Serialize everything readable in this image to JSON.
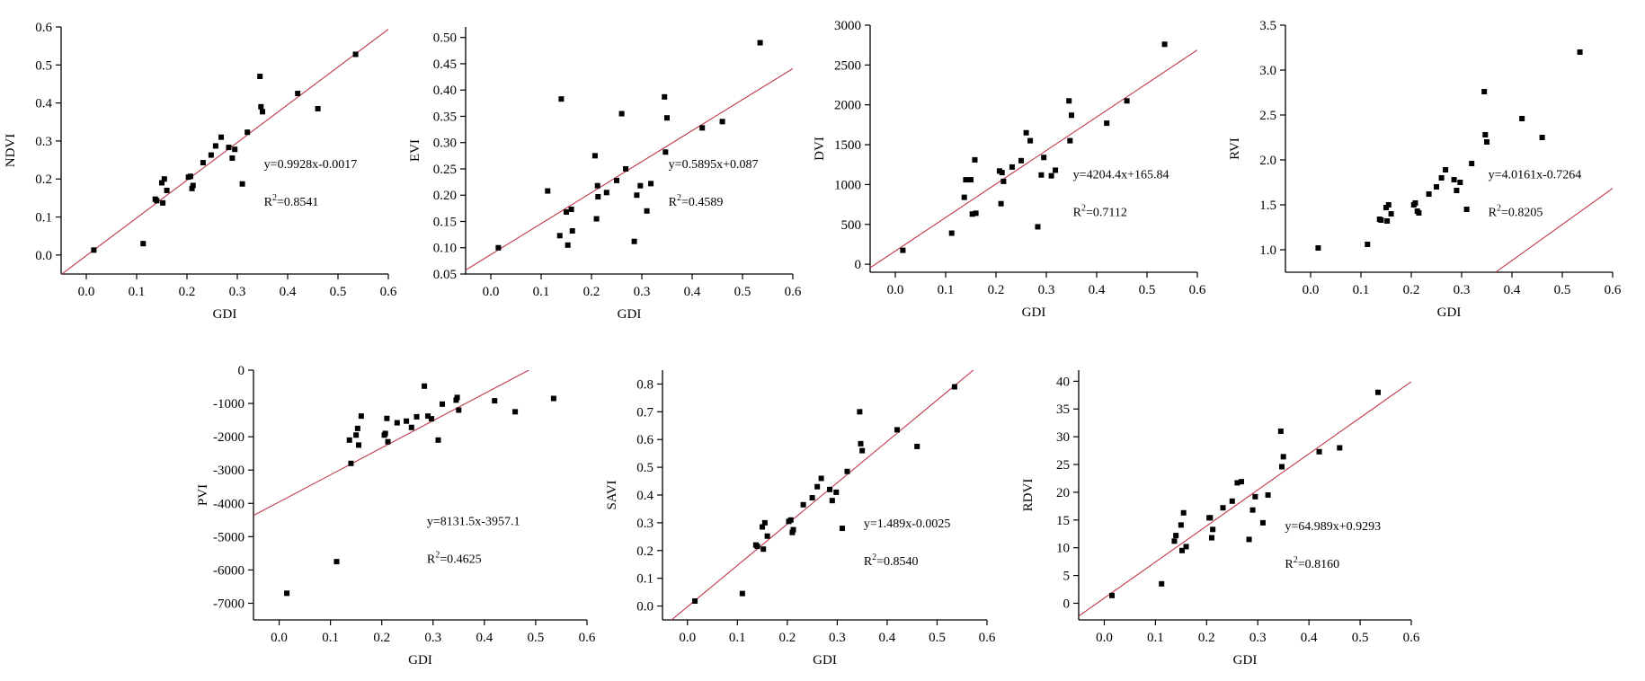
{
  "figure": {
    "background": "#ffffff",
    "fit_line_color": "#c0394a",
    "point_color": "#000000"
  },
  "chart_data": [
    {
      "type": "scatter",
      "title": "",
      "xlabel": "GDI",
      "ylabel": "NDVI",
      "xlim": [
        -0.05,
        0.6
      ],
      "ylim": [
        -0.05,
        0.6
      ],
      "xticks": [
        "0.0",
        "0.1",
        "0.2",
        "0.3",
        "0.4",
        "0.5",
        "0.6"
      ],
      "yticks": [
        "0.0",
        "0.1",
        "0.2",
        "0.3",
        "0.4",
        "0.5",
        "0.6"
      ],
      "equation": "y=0.9928x-0.0017",
      "r2_prefix": "R",
      "r2_sup": "2",
      "r2_value": "=0.8541",
      "fit": {
        "slope": 0.9928,
        "intercept": -0.0017
      },
      "points": [
        [
          0.015,
          0.013
        ],
        [
          0.113,
          0.03
        ],
        [
          0.137,
          0.147
        ],
        [
          0.14,
          0.143
        ],
        [
          0.15,
          0.19
        ],
        [
          0.152,
          0.137
        ],
        [
          0.155,
          0.2
        ],
        [
          0.16,
          0.17
        ],
        [
          0.203,
          0.205
        ],
        [
          0.207,
          0.207
        ],
        [
          0.21,
          0.175
        ],
        [
          0.212,
          0.183
        ],
        [
          0.232,
          0.243
        ],
        [
          0.248,
          0.263
        ],
        [
          0.257,
          0.287
        ],
        [
          0.268,
          0.31
        ],
        [
          0.283,
          0.283
        ],
        [
          0.29,
          0.255
        ],
        [
          0.295,
          0.278
        ],
        [
          0.31,
          0.187
        ],
        [
          0.32,
          0.323
        ],
        [
          0.345,
          0.47
        ],
        [
          0.347,
          0.39
        ],
        [
          0.35,
          0.377
        ],
        [
          0.42,
          0.425
        ],
        [
          0.46,
          0.385
        ],
        [
          0.535,
          0.528
        ]
      ]
    },
    {
      "type": "scatter",
      "title": "",
      "xlabel": "GDI",
      "ylabel": "EVI",
      "xlim": [
        -0.05,
        0.6
      ],
      "ylim": [
        0.05,
        0.52
      ],
      "xticks": [
        "0.0",
        "0.1",
        "0.2",
        "0.3",
        "0.4",
        "0.5",
        "0.6"
      ],
      "yticks": [
        "0.05",
        "0.10",
        "0.15",
        "0.20",
        "0.25",
        "0.30",
        "0.35",
        "0.40",
        "0.45",
        "0.50"
      ],
      "equation": "y=0.5895x+0.087",
      "r2_prefix": "R",
      "r2_sup": "2",
      "r2_value": "=0.4589",
      "fit": {
        "slope": 0.5895,
        "intercept": 0.087
      },
      "points": [
        [
          0.015,
          0.1
        ],
        [
          0.113,
          0.208
        ],
        [
          0.137,
          0.123
        ],
        [
          0.14,
          0.383
        ],
        [
          0.15,
          0.168
        ],
        [
          0.153,
          0.105
        ],
        [
          0.16,
          0.173
        ],
        [
          0.162,
          0.132
        ],
        [
          0.207,
          0.275
        ],
        [
          0.21,
          0.155
        ],
        [
          0.212,
          0.218
        ],
        [
          0.213,
          0.197
        ],
        [
          0.23,
          0.205
        ],
        [
          0.25,
          0.228
        ],
        [
          0.26,
          0.355
        ],
        [
          0.268,
          0.25
        ],
        [
          0.285,
          0.112
        ],
        [
          0.29,
          0.2
        ],
        [
          0.297,
          0.218
        ],
        [
          0.31,
          0.17
        ],
        [
          0.318,
          0.222
        ],
        [
          0.345,
          0.387
        ],
        [
          0.347,
          0.282
        ],
        [
          0.35,
          0.347
        ],
        [
          0.42,
          0.328
        ],
        [
          0.46,
          0.34
        ],
        [
          0.535,
          0.49
        ]
      ]
    },
    {
      "type": "scatter",
      "title": "",
      "xlabel": "GDI",
      "ylabel": "DVI",
      "xlim": [
        -0.05,
        0.6
      ],
      "ylim": [
        -100,
        3000
      ],
      "xticks": [
        "0.0",
        "0.1",
        "0.2",
        "0.3",
        "0.4",
        "0.5",
        "0.6"
      ],
      "yticks": [
        "0",
        "500",
        "1000",
        "1500",
        "2000",
        "2500",
        "3000"
      ],
      "equation": "y=4204.4x+165.84",
      "r2_prefix": "R",
      "r2_sup": "2",
      "r2_value": "=0.7112",
      "fit": {
        "slope": 4204.4,
        "intercept": 165.84
      },
      "points": [
        [
          0.015,
          175
        ],
        [
          0.112,
          390
        ],
        [
          0.137,
          840
        ],
        [
          0.14,
          1060
        ],
        [
          0.15,
          1060
        ],
        [
          0.153,
          630
        ],
        [
          0.158,
          1310
        ],
        [
          0.16,
          640
        ],
        [
          0.207,
          1170
        ],
        [
          0.21,
          760
        ],
        [
          0.212,
          1150
        ],
        [
          0.215,
          1040
        ],
        [
          0.232,
          1220
        ],
        [
          0.25,
          1300
        ],
        [
          0.26,
          1650
        ],
        [
          0.268,
          1550
        ],
        [
          0.283,
          470
        ],
        [
          0.29,
          1120
        ],
        [
          0.295,
          1340
        ],
        [
          0.31,
          1110
        ],
        [
          0.318,
          1180
        ],
        [
          0.345,
          2050
        ],
        [
          0.347,
          1550
        ],
        [
          0.35,
          1870
        ],
        [
          0.42,
          1770
        ],
        [
          0.46,
          2050
        ],
        [
          0.535,
          2760
        ]
      ]
    },
    {
      "type": "scatter",
      "title": "",
      "xlabel": "GDI",
      "ylabel": "RVI",
      "xlim": [
        -0.05,
        0.6
      ],
      "ylim": [
        0.75,
        3.5
      ],
      "xticks": [
        "0.0",
        "0.1",
        "0.2",
        "0.3",
        "0.4",
        "0.5",
        "0.6"
      ],
      "yticks": [
        "1.0",
        "1.5",
        "2.0",
        "2.5",
        "3.0",
        "3.5"
      ],
      "equation": "y=4.0161x-0.7264",
      "r2_prefix": "R",
      "r2_sup": "2",
      "r2_value": "=0.8205",
      "fit": {
        "slope": 4.0161,
        "intercept": -0.7264
      },
      "points": [
        [
          0.015,
          1.02
        ],
        [
          0.113,
          1.06
        ],
        [
          0.137,
          1.34
        ],
        [
          0.14,
          1.33
        ],
        [
          0.15,
          1.47
        ],
        [
          0.152,
          1.32
        ],
        [
          0.155,
          1.5
        ],
        [
          0.16,
          1.4
        ],
        [
          0.205,
          1.5
        ],
        [
          0.208,
          1.52
        ],
        [
          0.212,
          1.43
        ],
        [
          0.215,
          1.41
        ],
        [
          0.235,
          1.62
        ],
        [
          0.25,
          1.7
        ],
        [
          0.26,
          1.8
        ],
        [
          0.268,
          1.89
        ],
        [
          0.285,
          1.78
        ],
        [
          0.29,
          1.66
        ],
        [
          0.297,
          1.75
        ],
        [
          0.31,
          1.45
        ],
        [
          0.32,
          1.96
        ],
        [
          0.345,
          2.76
        ],
        [
          0.347,
          2.28
        ],
        [
          0.35,
          2.2
        ],
        [
          0.42,
          2.46
        ],
        [
          0.46,
          2.25
        ],
        [
          0.535,
          3.2
        ]
      ]
    },
    {
      "type": "scatter",
      "title": "",
      "xlabel": "GDI",
      "ylabel": "PVI",
      "xlim": [
        -0.05,
        0.6
      ],
      "ylim": [
        -7500,
        0
      ],
      "xticks": [
        "0.0",
        "0.1",
        "0.2",
        "0.3",
        "0.4",
        "0.5",
        "0.6"
      ],
      "yticks": [
        "-7000",
        "-6000",
        "-5000",
        "-4000",
        "-3000",
        "-2000",
        "-1000",
        "0"
      ],
      "equation": "y=8131.5x-3957.1",
      "r2_prefix": "R",
      "r2_sup": "2",
      "r2_value": "=0.4625",
      "fit": {
        "slope": 8131.5,
        "intercept": -3957.1
      },
      "points": [
        [
          0.015,
          -6700
        ],
        [
          0.112,
          -5750
        ],
        [
          0.137,
          -2100
        ],
        [
          0.14,
          -2800
        ],
        [
          0.15,
          -1950
        ],
        [
          0.153,
          -1750
        ],
        [
          0.155,
          -2250
        ],
        [
          0.16,
          -1380
        ],
        [
          0.205,
          -1950
        ],
        [
          0.207,
          -1900
        ],
        [
          0.21,
          -1450
        ],
        [
          0.212,
          -2150
        ],
        [
          0.23,
          -1580
        ],
        [
          0.248,
          -1530
        ],
        [
          0.258,
          -1720
        ],
        [
          0.268,
          -1400
        ],
        [
          0.283,
          -480
        ],
        [
          0.29,
          -1380
        ],
        [
          0.297,
          -1460
        ],
        [
          0.31,
          -2100
        ],
        [
          0.318,
          -1020
        ],
        [
          0.345,
          -900
        ],
        [
          0.347,
          -820
        ],
        [
          0.35,
          -1200
        ],
        [
          0.42,
          -920
        ],
        [
          0.46,
          -1250
        ],
        [
          0.535,
          -850
        ]
      ]
    },
    {
      "type": "scatter",
      "title": "",
      "xlabel": "GDI",
      "ylabel": "SAVI",
      "xlim": [
        -0.05,
        0.6
      ],
      "ylim": [
        -0.05,
        0.85
      ],
      "xticks": [
        "0.0",
        "0.1",
        "0.2",
        "0.3",
        "0.4",
        "0.5",
        "0.6"
      ],
      "yticks": [
        "0.0",
        "0.1",
        "0.2",
        "0.3",
        "0.4",
        "0.5",
        "0.6",
        "0.7",
        "0.8"
      ],
      "equation": "y=1.489x-0.0025",
      "r2_prefix": "R",
      "r2_sup": "2",
      "r2_value": "=0.8540",
      "fit": {
        "slope": 1.489,
        "intercept": -0.0025
      },
      "points": [
        [
          0.015,
          0.018
        ],
        [
          0.11,
          0.045
        ],
        [
          0.137,
          0.22
        ],
        [
          0.14,
          0.215
        ],
        [
          0.15,
          0.285
        ],
        [
          0.152,
          0.205
        ],
        [
          0.155,
          0.3
        ],
        [
          0.16,
          0.252
        ],
        [
          0.203,
          0.305
        ],
        [
          0.207,
          0.31
        ],
        [
          0.21,
          0.265
        ],
        [
          0.212,
          0.275
        ],
        [
          0.232,
          0.365
        ],
        [
          0.25,
          0.39
        ],
        [
          0.26,
          0.43
        ],
        [
          0.268,
          0.46
        ],
        [
          0.285,
          0.42
        ],
        [
          0.29,
          0.38
        ],
        [
          0.298,
          0.41
        ],
        [
          0.31,
          0.28
        ],
        [
          0.32,
          0.485
        ],
        [
          0.345,
          0.7
        ],
        [
          0.347,
          0.585
        ],
        [
          0.35,
          0.56
        ],
        [
          0.42,
          0.635
        ],
        [
          0.46,
          0.575
        ],
        [
          0.535,
          0.79
        ]
      ]
    },
    {
      "type": "scatter",
      "title": "",
      "xlabel": "GDI",
      "ylabel": "RDVI",
      "xlim": [
        -0.05,
        0.6
      ],
      "ylim": [
        -3,
        42
      ],
      "xticks": [
        "0.0",
        "0.1",
        "0.2",
        "0.3",
        "0.4",
        "0.5",
        "0.6"
      ],
      "yticks": [
        "0",
        "5",
        "10",
        "15",
        "20",
        "25",
        "30",
        "35",
        "40"
      ],
      "equation": "y=64.989x+0.9293",
      "r2_prefix": "R",
      "r2_sup": "2",
      "r2_value": "=0.8160",
      "fit": {
        "slope": 64.989,
        "intercept": 0.9293
      },
      "points": [
        [
          0.015,
          1.4
        ],
        [
          0.112,
          3.5
        ],
        [
          0.137,
          11.2
        ],
        [
          0.14,
          12.2
        ],
        [
          0.15,
          14.1
        ],
        [
          0.152,
          9.5
        ],
        [
          0.155,
          16.3
        ],
        [
          0.16,
          10.2
        ],
        [
          0.205,
          15.4
        ],
        [
          0.207,
          15.4
        ],
        [
          0.21,
          11.8
        ],
        [
          0.212,
          13.3
        ],
        [
          0.232,
          17.2
        ],
        [
          0.25,
          18.4
        ],
        [
          0.26,
          21.7
        ],
        [
          0.268,
          21.9
        ],
        [
          0.283,
          11.5
        ],
        [
          0.29,
          16.8
        ],
        [
          0.295,
          19.2
        ],
        [
          0.31,
          14.5
        ],
        [
          0.32,
          19.5
        ],
        [
          0.345,
          31
        ],
        [
          0.347,
          24.6
        ],
        [
          0.35,
          26.4
        ],
        [
          0.42,
          27.3
        ],
        [
          0.46,
          28
        ],
        [
          0.535,
          38
        ]
      ]
    }
  ]
}
